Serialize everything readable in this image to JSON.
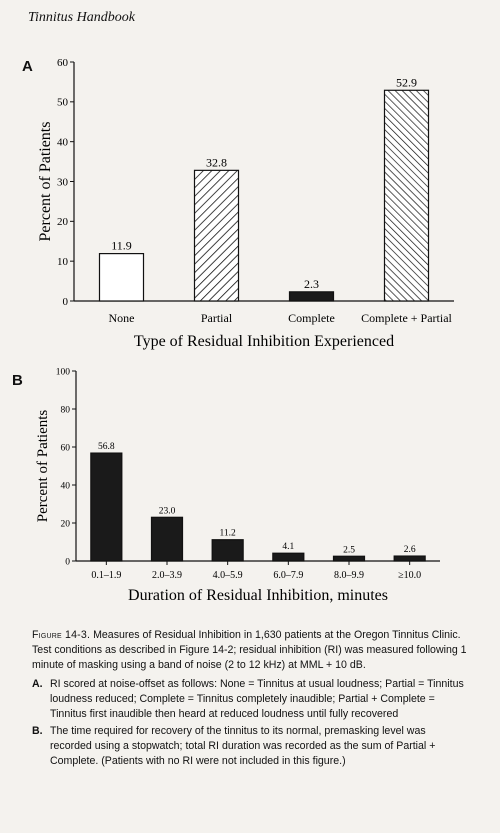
{
  "page": {
    "header": "Tinnitus Handbook"
  },
  "chart_data": [
    {
      "panel": "A",
      "type": "bar",
      "categories": [
        "None",
        "Partial",
        "Complete",
        "Complete + Partial"
      ],
      "values": [
        11.9,
        32.8,
        2.3,
        52.9
      ],
      "value_labels": [
        "11.9",
        "32.8",
        "2.3",
        "52.9"
      ],
      "xlabel": "Type of Residual Inhibition Experienced",
      "ylabel": "Percent of Patients",
      "ylim": [
        0,
        60
      ],
      "yticks": [
        0,
        10,
        20,
        30,
        40,
        50,
        60
      ],
      "grid": false
    },
    {
      "panel": "B",
      "type": "bar",
      "categories": [
        "0.1–1.9",
        "2.0–3.9",
        "4.0–5.9",
        "6.0–7.9",
        "8.0–9.9",
        "≥10.0"
      ],
      "values": [
        56.8,
        23.0,
        11.2,
        4.1,
        2.5,
        2.6
      ],
      "value_labels": [
        "56.8",
        "23.0",
        "11.2",
        "4.1",
        "2.5",
        "2.6"
      ],
      "xlabel": "Duration of Residual Inhibition, minutes",
      "ylabel": "Percent of Patients",
      "ylim": [
        0,
        100
      ],
      "yticks": [
        0,
        20,
        40,
        60,
        80,
        100
      ],
      "grid": false
    }
  ],
  "caption": {
    "figure_label": "Figure 14-3.",
    "text": "Measures of Residual Inhibition in 1,630 patients at the Oregon Tinnitus Clinic. Test conditions as described in Figure 14-2; residual inhibition (RI) was measured following 1 minute of masking using a band of noise (2 to 12 kHz) at MML + 10 dB.",
    "notes": [
      {
        "key": "A.",
        "text": "RI scored at noise-offset as follows: None = Tinnitus at usual loudness; Partial = Tinnitus loudness reduced; Complete = Tinnitus completely inaudible; Partial + Complete = Tinnitus first inaudible then heard at reduced loudness until fully recovered"
      },
      {
        "key": "B.",
        "text": "The time required for recovery of the tinnitus to its normal, premasking level was recorded using a stopwatch; total RI duration was recorded as the sum of Partial + Complete. (Patients with no RI were not included in this figure.)"
      }
    ]
  }
}
